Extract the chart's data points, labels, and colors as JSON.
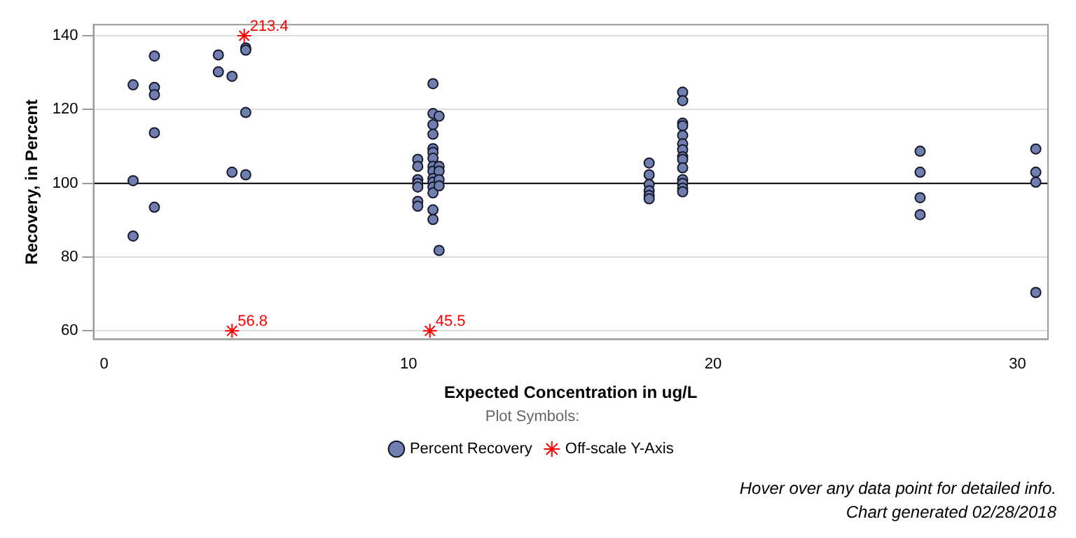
{
  "chart_data": {
    "type": "scatter",
    "xlabel": "Expected Concentration in ug/L",
    "ylabel": "Recovery, in Percent",
    "xlim": [
      -0.35,
      31
    ],
    "xticks": [
      0,
      10,
      20,
      30
    ],
    "ylim": [
      57.7,
      143
    ],
    "yticks": [
      60,
      80,
      100,
      120,
      140
    ],
    "grid": "y",
    "legend": "bottom",
    "legend_title": "Plot Symbols:",
    "ref_lines": [
      {
        "axis": "y",
        "value": 100,
        "color": "#000000"
      }
    ],
    "annotations": [
      "Hover over any data point for detailed info.",
      "Chart generated 02/28/2018",
      {
        "text": "56.8",
        "x": 4.2,
        "y": 60
      },
      {
        "text": "45.5",
        "x": 10.7,
        "y": 60
      },
      {
        "text": "213.4",
        "x": 4.6,
        "y": 140
      }
    ],
    "series": [
      {
        "name": "Percent Recovery",
        "color": "#6f7fb0",
        "marker": "circle",
        "x": [
          0.95,
          0.95,
          0.95,
          1.65,
          1.65,
          1.65,
          1.65,
          1.65,
          3.75,
          3.75,
          4.2,
          4.2,
          4.65,
          4.65,
          4.65,
          4.65,
          10.3,
          10.3,
          10.3,
          10.3,
          10.3,
          10.3,
          10.3,
          10.8,
          10.8,
          10.8,
          10.8,
          10.8,
          10.8,
          10.8,
          10.8,
          10.8,
          10.8,
          10.8,
          10.8,
          10.8,
          10.8,
          10.8,
          11.0,
          11.0,
          11.0,
          11.0,
          11.0,
          11.0,
          17.9,
          17.9,
          17.9,
          17.9,
          17.9,
          17.9,
          19.0,
          19.0,
          19.0,
          19.0,
          19.0,
          19.0,
          19.0,
          19.0,
          19.0,
          19.0,
          19.0,
          19.0,
          19.0,
          19.0,
          26.8,
          26.8,
          26.8,
          26.8,
          30.6,
          30.6,
          30.6,
          30.6
        ],
        "values": [
          126.7,
          100.7,
          85.7,
          134.5,
          126,
          124,
          113.7,
          93.5,
          134.8,
          130.2,
          129,
          103,
          136.7,
          136.1,
          119.2,
          102.3,
          106.5,
          104.6,
          101,
          100,
          99,
          95.1,
          93.8,
          127,
          118.9,
          115.9,
          113.3,
          109.4,
          108.4,
          106.8,
          104.6,
          103.3,
          101.3,
          100.3,
          99,
          97.4,
          92.8,
          90.2,
          118.2,
          104.6,
          103.3,
          101,
          99.3,
          81.8,
          105.5,
          102.3,
          99.7,
          98,
          96.7,
          95.8,
          124.7,
          122.4,
          116.3,
          115.6,
          113,
          110.7,
          109.1,
          107.2,
          106.5,
          104.2,
          101,
          100,
          98.7,
          97.7,
          108.7,
          103,
          96.1,
          91.5,
          109.3,
          103,
          100.3,
          70.4
        ]
      },
      {
        "name": "Off-scale Y-Axis",
        "color": "#ff0000",
        "marker": "cross",
        "x": [
          4.2,
          10.7,
          4.6
        ],
        "values": [
          60,
          60,
          140
        ]
      }
    ]
  }
}
